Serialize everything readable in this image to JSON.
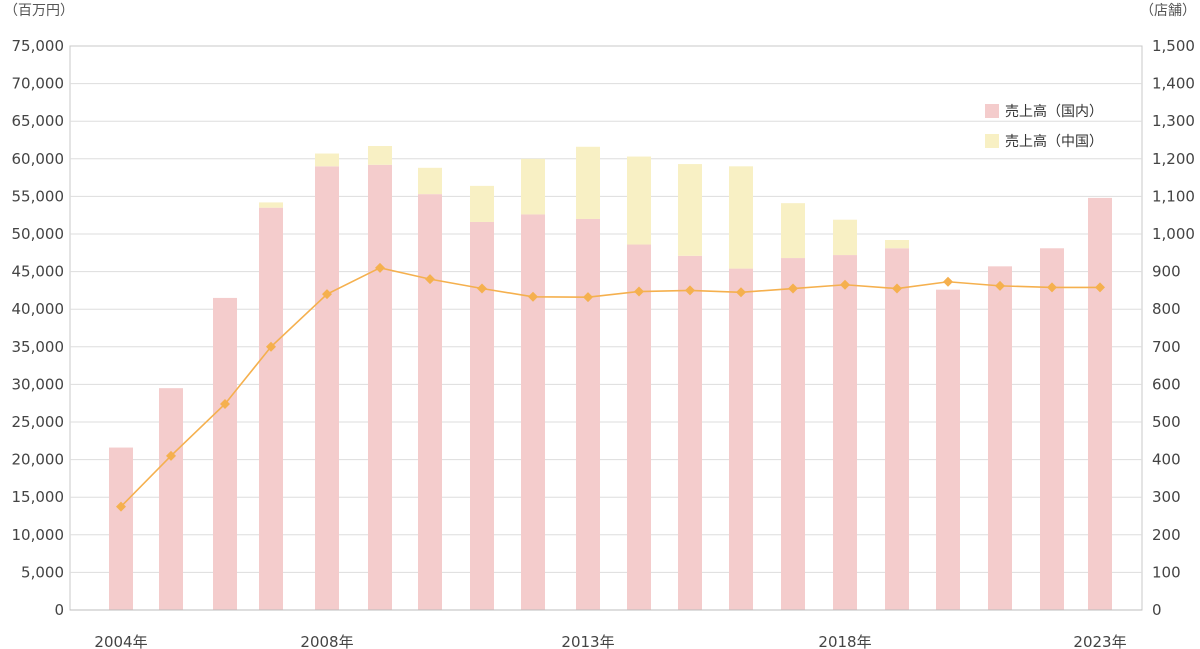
{
  "chart_data": {
    "type": "bar",
    "left_unit": "（百万円）",
    "right_unit": "（店舗）",
    "x": [
      2004,
      2005,
      2006,
      2007,
      2008,
      2009,
      2010,
      2011,
      2012,
      2013,
      2014,
      2015,
      2016,
      2017,
      2018,
      2019,
      2020,
      2021,
      2022,
      2023
    ],
    "x_tick_labels": [
      {
        "year": 2004,
        "label": "2004年"
      },
      {
        "year": 2008,
        "label": "2008年"
      },
      {
        "year": 2013,
        "label": "2013年"
      },
      {
        "year": 2018,
        "label": "2018年"
      },
      {
        "year": 2023,
        "label": "2023年"
      }
    ],
    "y_left": {
      "ylim": [
        0,
        75000
      ],
      "step": 5000,
      "tick_labels": [
        "0",
        "5,000",
        "10,000",
        "15,000",
        "20,000",
        "25,000",
        "30,000",
        "35,000",
        "40,000",
        "45,000",
        "50,000",
        "55,000",
        "60,000",
        "65,000",
        "70,000",
        "75,000"
      ]
    },
    "y_right": {
      "ylim": [
        0,
        1500
      ],
      "step": 100,
      "tick_labels": [
        "0",
        "100",
        "200",
        "300",
        "400",
        "500",
        "600",
        "700",
        "800",
        "900",
        "1,000",
        "1,100",
        "1,200",
        "1,300",
        "1,400",
        "1,500"
      ]
    },
    "series": [
      {
        "name": "売上高（国内）",
        "kind": "bar",
        "color": "#f4cccc",
        "values": [
          21600,
          29500,
          41500,
          53500,
          59000,
          59200,
          55300,
          51600,
          52600,
          52000,
          48600,
          47100,
          45400,
          46800,
          47200,
          48100,
          42600,
          45700,
          48100,
          54800
        ]
      },
      {
        "name": "売上高（中国）",
        "kind": "stacked-bar",
        "color": "#f8f0c4",
        "values": [
          0,
          0,
          0,
          700,
          1700,
          2500,
          3500,
          4800,
          7400,
          9600,
          11700,
          12200,
          13600,
          7300,
          4700,
          1100,
          0,
          0,
          0,
          0
        ]
      },
      {
        "kind": "line",
        "axis": "right",
        "color": "#f5b04e",
        "values": [
          275,
          410,
          548,
          700,
          840,
          910,
          880,
          855,
          833,
          832,
          847,
          850,
          845,
          855,
          865,
          855,
          873,
          862,
          858,
          858
        ]
      }
    ],
    "grid": true,
    "legend_position": "top-right"
  }
}
